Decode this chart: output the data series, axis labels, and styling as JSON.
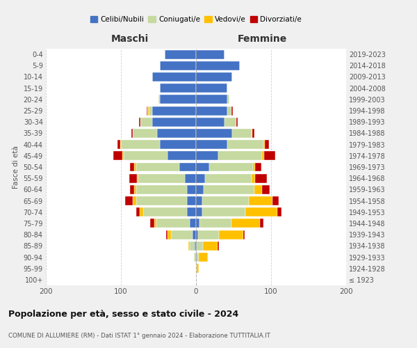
{
  "age_groups": [
    "100+",
    "95-99",
    "90-94",
    "85-89",
    "80-84",
    "75-79",
    "70-74",
    "65-69",
    "60-64",
    "55-59",
    "50-54",
    "45-49",
    "40-44",
    "35-39",
    "30-34",
    "25-29",
    "20-24",
    "15-19",
    "10-14",
    "5-9",
    "0-4"
  ],
  "birth_years": [
    "≤ 1923",
    "1924-1928",
    "1929-1933",
    "1934-1938",
    "1939-1943",
    "1944-1948",
    "1949-1953",
    "1954-1958",
    "1959-1963",
    "1964-1968",
    "1969-1973",
    "1974-1978",
    "1979-1983",
    "1984-1988",
    "1989-1993",
    "1994-1998",
    "1999-2003",
    "2004-2008",
    "2009-2013",
    "2014-2018",
    "2019-2023"
  ],
  "maschi": {
    "celibi": [
      0,
      0,
      1,
      2,
      5,
      8,
      12,
      12,
      12,
      15,
      22,
      38,
      48,
      52,
      58,
      58,
      48,
      48,
      58,
      48,
      42
    ],
    "coniugati": [
      0,
      0,
      2,
      6,
      28,
      45,
      58,
      68,
      68,
      62,
      58,
      58,
      52,
      32,
      16,
      5,
      2,
      0,
      0,
      0,
      0
    ],
    "vedovi": [
      0,
      0,
      0,
      2,
      5,
      3,
      5,
      4,
      2,
      2,
      2,
      2,
      1,
      0,
      0,
      2,
      0,
      0,
      0,
      0,
      0
    ],
    "divorziati": [
      0,
      0,
      0,
      0,
      2,
      5,
      5,
      10,
      6,
      10,
      6,
      12,
      4,
      2,
      2,
      1,
      0,
      0,
      0,
      0,
      0
    ]
  },
  "femmine": {
    "nubili": [
      0,
      0,
      1,
      1,
      3,
      5,
      8,
      8,
      10,
      12,
      18,
      30,
      42,
      48,
      38,
      42,
      42,
      42,
      48,
      58,
      38
    ],
    "coniugate": [
      0,
      1,
      3,
      8,
      28,
      42,
      58,
      62,
      68,
      62,
      58,
      58,
      48,
      26,
      16,
      5,
      2,
      0,
      0,
      0,
      0
    ],
    "vedove": [
      0,
      3,
      12,
      20,
      32,
      38,
      42,
      32,
      10,
      5,
      3,
      3,
      2,
      1,
      0,
      0,
      0,
      0,
      0,
      0,
      0
    ],
    "divorziate": [
      0,
      0,
      0,
      2,
      2,
      5,
      6,
      8,
      10,
      15,
      8,
      15,
      5,
      3,
      2,
      2,
      0,
      0,
      0,
      0,
      0
    ]
  },
  "colors": {
    "celibi": "#4472c4",
    "coniugati": "#c5d9a0",
    "vedovi": "#ffc000",
    "divorziati": "#c00000"
  },
  "legend_labels": [
    "Celibi/Nubili",
    "Coniugati/e",
    "Vedovi/e",
    "Divorziati/e"
  ],
  "legend_colors": [
    "#4472c4",
    "#c5d9a0",
    "#ffc000",
    "#c00000"
  ],
  "xlabel_left": "Maschi",
  "xlabel_right": "Femmine",
  "ylabel_left": "Fasce di età",
  "title": "Popolazione per età, sesso e stato civile - 2024",
  "subtitle": "COMUNE DI ALLUMIERE (RM) - Dati ISTAT 1° gennaio 2024 - Elaborazione TUTTITALIA.IT",
  "bg_color": "#f0f0f0",
  "plot_bg": "#ffffff",
  "grid_color": "#cccccc",
  "dashed_line_color": "#999999"
}
